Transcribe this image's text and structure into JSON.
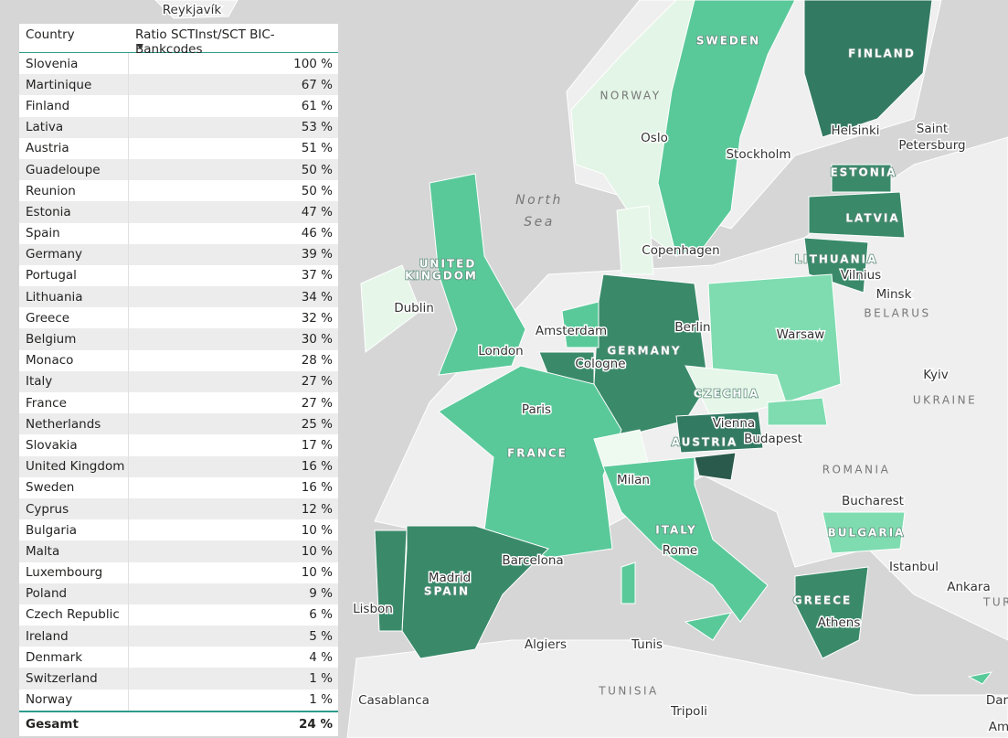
{
  "table": {
    "headers": [
      "Country",
      "Ratio SCTInst/SCT BIC-Bankcodes"
    ],
    "rows": [
      [
        "Slovenia",
        "100 %"
      ],
      [
        "Martinique",
        "67 %"
      ],
      [
        "Finland",
        "61 %"
      ],
      [
        "Lativa",
        "53 %"
      ],
      [
        "Austria",
        "51 %"
      ],
      [
        "Guadeloupe",
        "50 %"
      ],
      [
        "Reunion",
        "50 %"
      ],
      [
        "Estonia",
        "47 %"
      ],
      [
        "Spain",
        "46 %"
      ],
      [
        "Germany",
        "39 %"
      ],
      [
        "Portugal",
        "37 %"
      ],
      [
        "Lithuania",
        "34 %"
      ],
      [
        "Greece",
        "32 %"
      ],
      [
        "Belgium",
        "30 %"
      ],
      [
        "Monaco",
        "28 %"
      ],
      [
        "Italy",
        "27 %"
      ],
      [
        "France",
        "27 %"
      ],
      [
        "Netherlands",
        "25 %"
      ],
      [
        "Slovakia",
        "17 %"
      ],
      [
        "United Kingdom",
        "16 %"
      ],
      [
        "Sweden",
        "16 %"
      ],
      [
        "Cyprus",
        "12 %"
      ],
      [
        "Bulgaria",
        "10 %"
      ],
      [
        "Malta",
        "10 %"
      ],
      [
        "Luxembourg",
        "10 %"
      ],
      [
        "Poland",
        "9 %"
      ],
      [
        "Czech Republic",
        "6 %"
      ],
      [
        "Ireland",
        "5 %"
      ],
      [
        "Denmark",
        "4 %"
      ],
      [
        "Switzerland",
        "1 %"
      ],
      [
        "Norway",
        "1 %"
      ]
    ],
    "total": [
      "Gesamt",
      "24 %"
    ]
  },
  "map": {
    "labels": [
      "Reykjavík",
      "NORWAY",
      "SWEDEN",
      "FINLAND",
      "Helsinki",
      "Saint",
      "Petersburg",
      "Oslo",
      "Stockholm",
      "ESTONIA",
      "LATVIA",
      "LITHUANIA",
      "Vilnius",
      "Minsk",
      "BELARUS",
      "North",
      "Sea",
      "Copenhagen",
      "UNITED",
      "KINGDOM",
      "Dublin",
      "London",
      "Amsterdam",
      "Berlin",
      "Warsaw",
      "GERMANY",
      "Cologne",
      "Kyiv",
      "UKRAINE",
      "CZECHIA",
      "Paris",
      "Vienna",
      "Budapest",
      "AUSTRIA",
      "FRANCE",
      "ROMANIA",
      "Milan",
      "Bucharest",
      "BULGARIA",
      "ITALY",
      "Rome",
      "Barcelona",
      "Istanbul",
      "Ankara",
      "TUR",
      "Madrid",
      "SPAIN",
      "Lisbon",
      "GREECE",
      "Athens",
      "Algiers",
      "Tunis",
      "TUNISIA",
      "Casablanca",
      "Tripoli",
      "Dar",
      "Am"
    ]
  }
}
